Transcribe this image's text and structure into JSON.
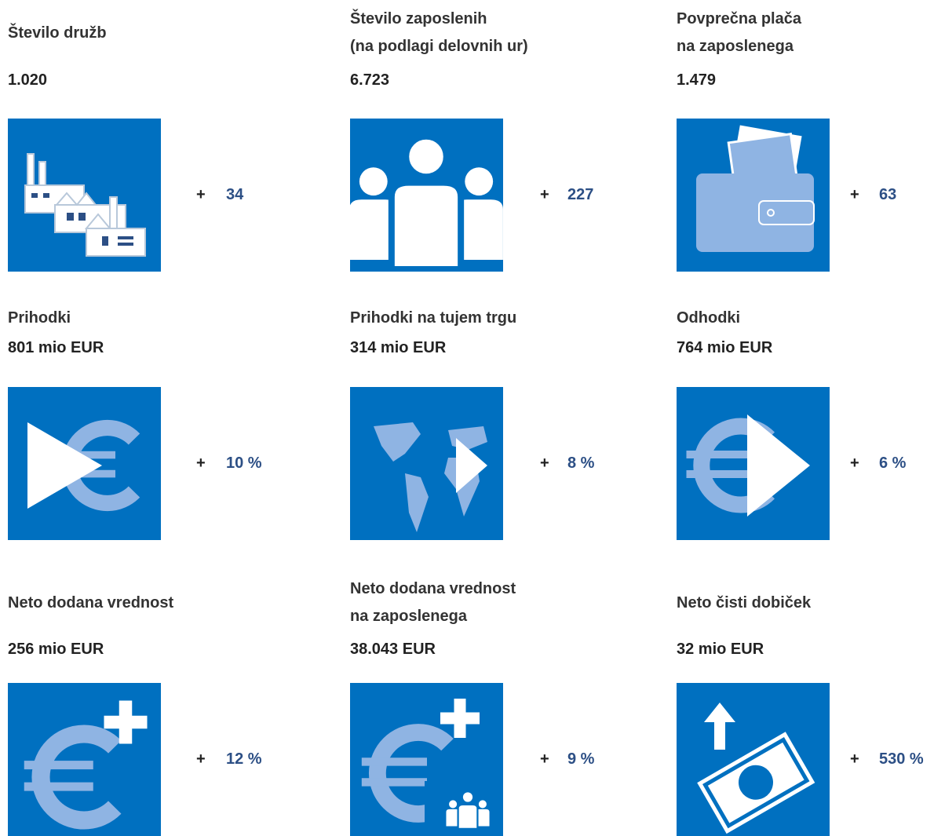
{
  "items": [
    {
      "title_lines": [
        "Število družb"
      ],
      "value": "1.020",
      "sign": "+",
      "change": "34"
    },
    {
      "title_lines": [
        "Število zaposlenih",
        "(na podlagi delovnih ur)"
      ],
      "value": "6.723",
      "sign": "+",
      "change": "227"
    },
    {
      "title_lines": [
        "Povprečna plača",
        "na zaposlenega"
      ],
      "value": "1.479",
      "sign": "+",
      "change": "63"
    },
    {
      "title_lines": [
        "Prihodki"
      ],
      "value": "801 mio EUR",
      "sign": "+",
      "change": "10 %"
    },
    {
      "title_lines": [
        "Prihodki na tujem trgu"
      ],
      "value": "314 mio EUR",
      "sign": "+",
      "change": "8 %"
    },
    {
      "title_lines": [
        "Odhodki"
      ],
      "value": "764 mio EUR",
      "sign": "+",
      "change": "6 %"
    },
    {
      "title_lines": [
        "Neto dodana vrednost"
      ],
      "value": "256 mio EUR",
      "sign": "+",
      "change": "12 %"
    },
    {
      "title_lines": [
        "Neto dodana vrednost",
        "na zaposlenega"
      ],
      "value": "38.043 EUR",
      "sign": "+",
      "change": "9 %"
    },
    {
      "title_lines": [
        "Neto čisti dobiček"
      ],
      "value": "32 mio EUR",
      "sign": "+",
      "change": "530 %"
    }
  ]
}
